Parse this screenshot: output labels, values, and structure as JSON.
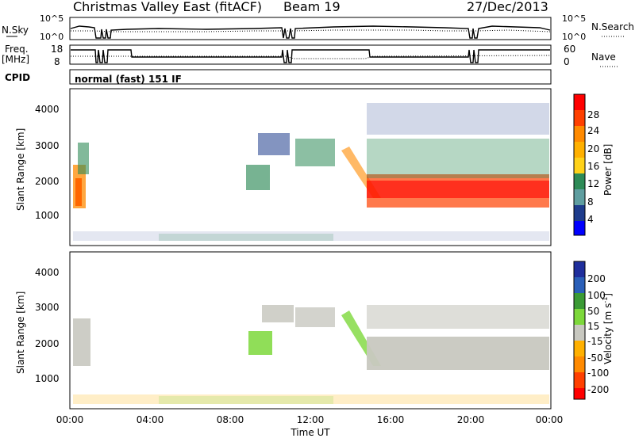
{
  "header": {
    "title": "Christmas Valley East (fitACF)",
    "beam": "Beam 19",
    "date": "27/Dec/2013"
  },
  "top_panels": {
    "nsky": {
      "left_label": "N.Sky",
      "left_ticks": [
        "10^5",
        "10^0"
      ],
      "right_ticks": [
        "10^5",
        "10^0"
      ],
      "right_label": "N.Search"
    },
    "freq": {
      "left_label_1": "Freq.",
      "left_label_2": "[MHz]",
      "left_ticks": [
        "18",
        "8"
      ],
      "right_ticks": [
        "60",
        "0"
      ],
      "right_label": "Nave"
    },
    "cpid": {
      "label": "CPID",
      "text": "normal (fast) 151 IF"
    }
  },
  "chart_data": [
    {
      "type": "heatmap",
      "name_on_chart": "Power [dB]",
      "ylabel": "Slant Range [km]",
      "ylim": [
        180,
        4500
      ],
      "yticks": [
        "1000",
        "2000",
        "3000",
        "4000"
      ],
      "xlabel": "Time UT",
      "xlim": [
        "00:00",
        "24:00"
      ],
      "xticks": [
        "00:00",
        "04:00",
        "08:00",
        "12:00",
        "16:00",
        "20:00",
        "00:00"
      ],
      "colorbar": {
        "label": "Power [dB]",
        "ticks": [
          "28",
          "24",
          "20",
          "16",
          "12",
          "8",
          "4"
        ],
        "colors": [
          "#ff0000",
          "#ff4000",
          "#ff8a00",
          "#ffb000",
          "#ffd21a",
          "#2e8b57",
          "#5f9ea0",
          "#1e3c8c",
          "#0000ff"
        ]
      }
    },
    {
      "type": "heatmap",
      "name_on_chart": "Velocity [m s-1]",
      "ylabel": "Slant Range [km]",
      "ylim": [
        180,
        4500
      ],
      "yticks": [
        "1000",
        "2000",
        "3000",
        "4000"
      ],
      "xlabel": "Time UT",
      "xlim": [
        "00:00",
        "24:00"
      ],
      "xticks": [
        "00:00",
        "04:00",
        "08:00",
        "12:00",
        "16:00",
        "20:00",
        "00:00"
      ],
      "colorbar": {
        "label": "Velocity [m s",
        "label_sup": "-1",
        "label_end": "]",
        "ticks": [
          "200",
          "100",
          "50",
          "15",
          "-15",
          "-50",
          "-100",
          "-200"
        ],
        "colors": [
          "#1f2e9c",
          "#2a5fb8",
          "#3b9a35",
          "#7dd83b",
          "#c8c8c0",
          "#ffb000",
          "#ff8a00",
          "#ff4000",
          "#ff0000"
        ]
      }
    }
  ],
  "bottom_label": "Time UT"
}
